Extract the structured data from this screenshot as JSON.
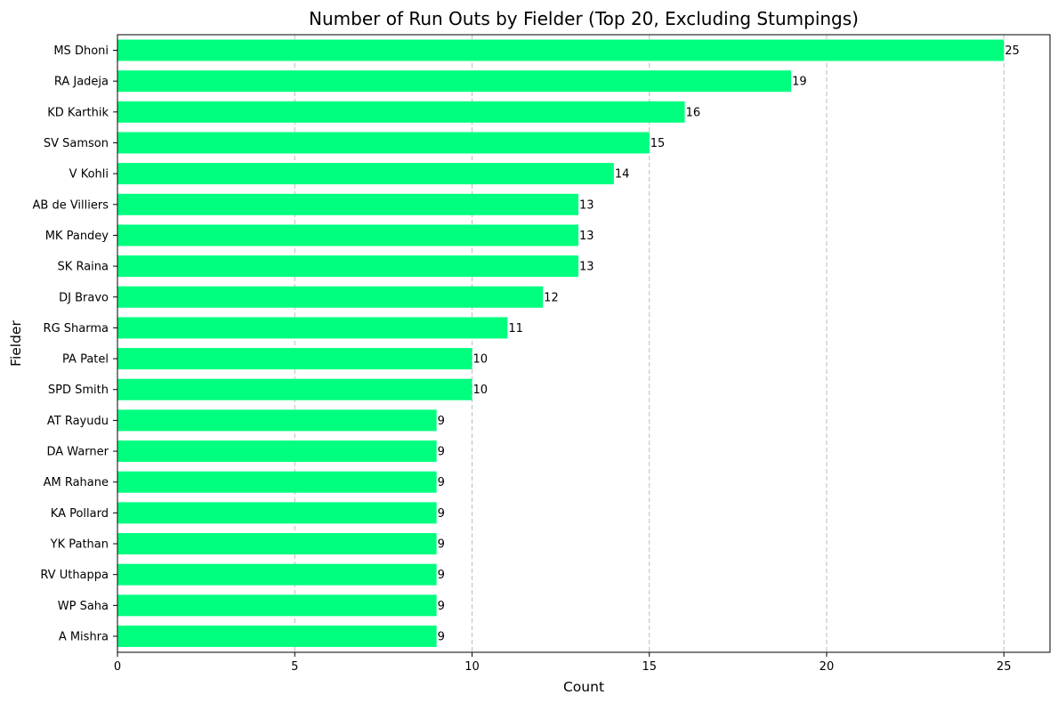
{
  "chart_data": {
    "type": "bar",
    "orientation": "horizontal",
    "title": "Number of Run Outs by Fielder (Top 20, Excluding Stumpings)",
    "xlabel": "Count",
    "ylabel": "Fielder",
    "xlim": [
      0,
      26.3
    ],
    "xticks": [
      0,
      5,
      10,
      15,
      20,
      25
    ],
    "grid": {
      "axis": "x",
      "style": "dashed",
      "visible": true
    },
    "legend": "none",
    "bar_color": "#00ff7f",
    "categories": [
      "MS Dhoni",
      "RA Jadeja",
      "KD Karthik",
      "SV Samson",
      "V Kohli",
      "AB de Villiers",
      "MK Pandey",
      "SK Raina",
      "DJ Bravo",
      "RG Sharma",
      "PA Patel",
      "SPD Smith",
      "AT Rayudu",
      "DA Warner",
      "AM Rahane",
      "KA Pollard",
      "YK Pathan",
      "RV Uthappa",
      "WP Saha",
      "A Mishra"
    ],
    "values": [
      25,
      19,
      16,
      15,
      14,
      13,
      13,
      13,
      12,
      11,
      10,
      10,
      9,
      9,
      9,
      9,
      9,
      9,
      9,
      9
    ]
  }
}
